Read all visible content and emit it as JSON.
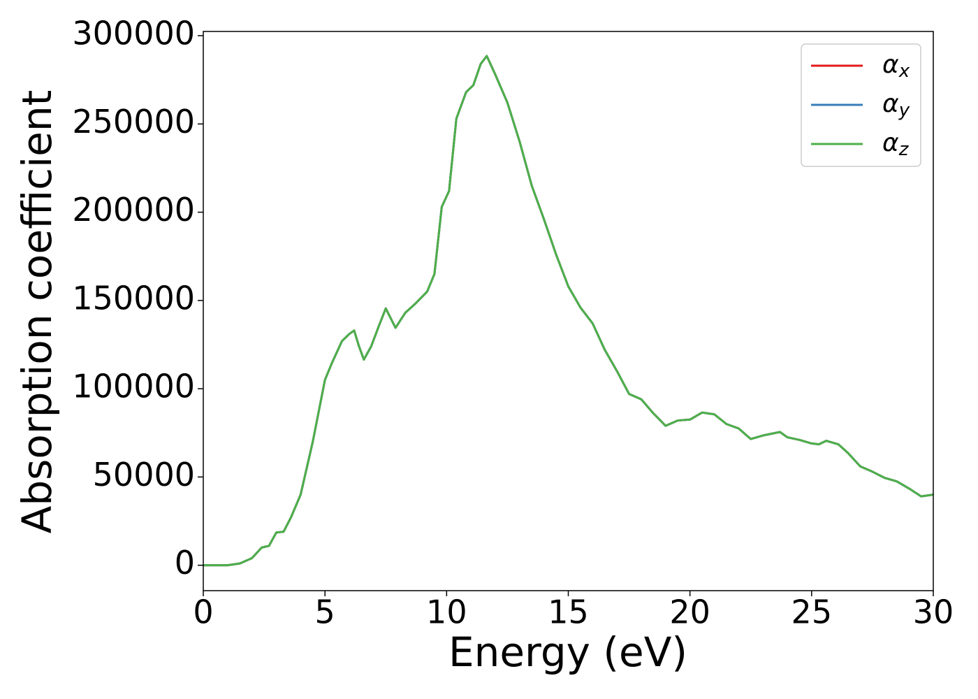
{
  "chart_data": {
    "type": "line",
    "xlabel": "Energy (eV)",
    "ylabel": "Absorption coefficient",
    "x": [
      0,
      1,
      1.5,
      2,
      2.4,
      2.7,
      3.0,
      3.3,
      3.6,
      4.0,
      4.5,
      5.0,
      5.3,
      5.7,
      6.0,
      6.2,
      6.4,
      6.6,
      6.9,
      7.2,
      7.5,
      7.9,
      8.3,
      8.7,
      9.2,
      9.5,
      9.8,
      10.1,
      10.4,
      10.8,
      11.1,
      11.4,
      11.65,
      12.0,
      12.5,
      13.0,
      13.5,
      14.0,
      14.5,
      15.0,
      15.5,
      16.0,
      16.5,
      17.0,
      17.5,
      18.0,
      18.5,
      19.0,
      19.5,
      20.0,
      20.5,
      21.0,
      21.5,
      22.0,
      22.5,
      23.0,
      23.7,
      24.0,
      24.5,
      25.0,
      25.3,
      25.6,
      26.1,
      26.5,
      27.0,
      27.5,
      28.0,
      28.5,
      29.0,
      29.5,
      30.0
    ],
    "series": [
      {
        "name": "αx",
        "color": "#e41a1c",
        "values": [
          0,
          0,
          1000,
          4000,
          10000,
          11000,
          18500,
          19000,
          27000,
          40000,
          70000,
          105000,
          115000,
          127000,
          131000,
          133000,
          124000,
          116500,
          124000,
          135000,
          145500,
          134500,
          143000,
          148000,
          155000,
          165000,
          203000,
          212000,
          253000,
          268000,
          272000,
          284000,
          288500,
          278000,
          262000,
          240000,
          215000,
          196000,
          176000,
          158000,
          146000,
          137000,
          122000,
          110000,
          97000,
          94000,
          86000,
          79000,
          82000,
          82500,
          86500,
          85500,
          80000,
          77500,
          71500,
          73500,
          75500,
          72500,
          71000,
          69000,
          68500,
          70500,
          68500,
          63500,
          56000,
          53000,
          49500,
          47500,
          43500,
          39000,
          40000
        ]
      },
      {
        "name": "αy",
        "color": "#377eb8",
        "values": [
          0,
          0,
          1000,
          4000,
          10000,
          11000,
          18500,
          19000,
          27000,
          40000,
          70000,
          105000,
          115000,
          127000,
          131000,
          133000,
          124000,
          116500,
          124000,
          135000,
          145500,
          134500,
          143000,
          148000,
          155000,
          165000,
          203000,
          212000,
          253000,
          268000,
          272000,
          284000,
          288500,
          278000,
          262000,
          240000,
          215000,
          196000,
          176000,
          158000,
          146000,
          137000,
          122000,
          110000,
          97000,
          94000,
          86000,
          79000,
          82000,
          82500,
          86500,
          85500,
          80000,
          77500,
          71500,
          73500,
          75500,
          72500,
          71000,
          69000,
          68500,
          70500,
          68500,
          63500,
          56000,
          53000,
          49500,
          47500,
          43500,
          39000,
          40000
        ]
      },
      {
        "name": "αz",
        "color": "#4daf4a",
        "values": [
          0,
          0,
          1000,
          4000,
          10000,
          11000,
          18500,
          19000,
          27000,
          40000,
          70000,
          105000,
          115000,
          127000,
          131000,
          133000,
          124000,
          116500,
          124000,
          135000,
          145500,
          134500,
          143000,
          148000,
          155000,
          165000,
          203000,
          212000,
          253000,
          268000,
          272000,
          284000,
          288500,
          278000,
          262000,
          240000,
          215000,
          196000,
          176000,
          158000,
          146000,
          137000,
          122000,
          110000,
          97000,
          94000,
          86000,
          79000,
          82000,
          82500,
          86500,
          85500,
          80000,
          77500,
          71500,
          73500,
          75500,
          72500,
          71000,
          69000,
          68500,
          70500,
          68500,
          63500,
          56000,
          53000,
          49500,
          47500,
          43500,
          39000,
          40000
        ]
      }
    ],
    "xlim": [
      0,
      30
    ],
    "xticks": [
      0,
      5,
      10,
      15,
      20,
      25,
      30
    ],
    "ylim": [
      -14400,
      302400
    ],
    "yticks": [
      0,
      50000,
      100000,
      150000,
      200000,
      250000,
      300000
    ],
    "legend": "upper right"
  }
}
